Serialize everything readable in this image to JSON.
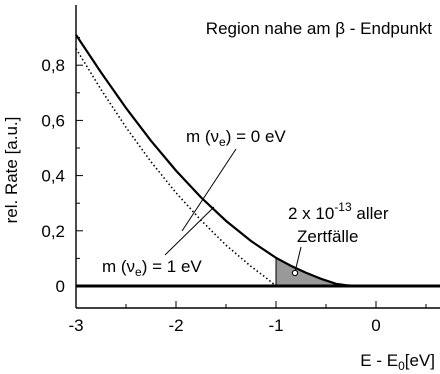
{
  "chart_data": {
    "type": "line",
    "title": "Region nahe am β - Endpunkt",
    "xlabel": "E - E0 [eV]",
    "xlabel_parts": {
      "main": "E - E",
      "sub": "0",
      "unit": "[eV]"
    },
    "ylabel": "rel. Rate [a.u.]",
    "xlim": [
      -3,
      0.65
    ],
    "ylim": [
      -0.06,
      0.985
    ],
    "xticks": [
      -3,
      -2,
      -1,
      0
    ],
    "xtick_labels": [
      "-3",
      "-2",
      "-1",
      "0"
    ],
    "yticks": [
      0,
      0.2,
      0.4,
      0.6,
      0.8
    ],
    "ytick_labels": [
      "0",
      "0,2",
      "0,4",
      "0,6",
      "0,8"
    ],
    "grid": false,
    "series": [
      {
        "name": "m (νe) = 0 eV",
        "label_parts": {
          "prefix": "m (ν",
          "sub": "e",
          "suffix": ") = 0 eV"
        },
        "style": "solid",
        "x": [
          -3.0,
          -2.75,
          -2.5,
          -2.25,
          -2.0,
          -1.75,
          -1.5,
          -1.25,
          -1.0,
          -0.85,
          -0.7,
          -0.55,
          -0.4,
          -0.3,
          -0.2
        ],
        "y": [
          0.91,
          0.774,
          0.645,
          0.526,
          0.418,
          0.321,
          0.236,
          0.163,
          0.102,
          0.073,
          0.048,
          0.026,
          0.008,
          0.003,
          0.0
        ]
      },
      {
        "name": "m (νe) = 1 eV",
        "label_parts": {
          "prefix": "m (ν",
          "sub": "e",
          "suffix": ") = 1 eV"
        },
        "style": "dotted",
        "x": [
          -3.0,
          -2.75,
          -2.5,
          -2.25,
          -2.0,
          -1.75,
          -1.5,
          -1.25,
          -1.1,
          -1.0
        ],
        "y": [
          0.86,
          0.712,
          0.575,
          0.45,
          0.338,
          0.238,
          0.148,
          0.071,
          0.03,
          0.0
        ]
      }
    ],
    "annotation": {
      "text_line1_base": "2 x 10",
      "text_line1_sup": "-13",
      "text_line1_tail": " aller",
      "text_line2": "Zertfälle",
      "shaded_region": {
        "x_from": -1.0,
        "x_to": -0.2
      },
      "fill_color": "#999999"
    },
    "colors": {
      "line": "#000000",
      "shade": "#999999"
    }
  }
}
